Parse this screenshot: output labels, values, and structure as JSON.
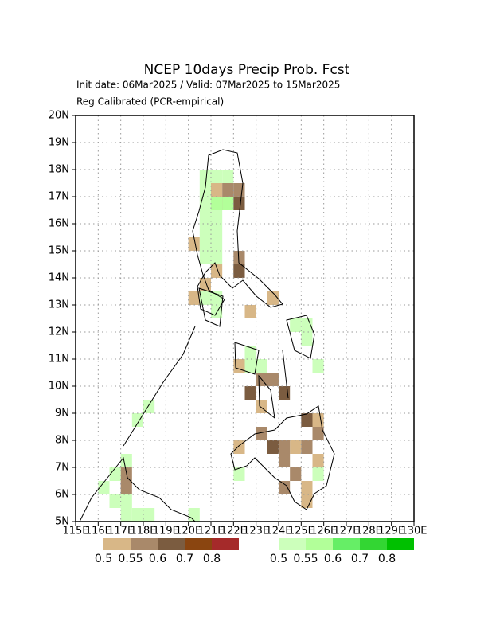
{
  "map": {
    "title": "NCEP 10days Precip Prob. Fcst",
    "subtitle": "Init date: 06Mar2025 / Valid: 07Mar2025 to 15Mar2025",
    "note": "Reg Calibrated (PCR-empirical)",
    "xlim": [
      115,
      130
    ],
    "ylim": [
      5,
      20
    ],
    "xticks": [
      {
        "value": 115,
        "label": "115E"
      },
      {
        "value": 116,
        "label": "116E"
      },
      {
        "value": 117,
        "label": "117E"
      },
      {
        "value": 118,
        "label": "118E"
      },
      {
        "value": 119,
        "label": "119E"
      },
      {
        "value": 120,
        "label": "120E"
      },
      {
        "value": 121,
        "label": "121E"
      },
      {
        "value": 122,
        "label": "122E"
      },
      {
        "value": 123,
        "label": "123E"
      },
      {
        "value": 124,
        "label": "124E"
      },
      {
        "value": 125,
        "label": "125E"
      },
      {
        "value": 126,
        "label": "126E"
      },
      {
        "value": 127,
        "label": "127E"
      },
      {
        "value": 128,
        "label": "128E"
      },
      {
        "value": 129,
        "label": "129E"
      },
      {
        "value": 130,
        "label": "130E"
      }
    ],
    "yticks": [
      {
        "value": 5,
        "label": "5N"
      },
      {
        "value": 6,
        "label": "6N"
      },
      {
        "value": 7,
        "label": "7N"
      },
      {
        "value": 8,
        "label": "8N"
      },
      {
        "value": 9,
        "label": "9N"
      },
      {
        "value": 10,
        "label": "10N"
      },
      {
        "value": 11,
        "label": "11N"
      },
      {
        "value": 12,
        "label": "12N"
      },
      {
        "value": 13,
        "label": "13N"
      },
      {
        "value": 14,
        "label": "14N"
      },
      {
        "value": 15,
        "label": "15N"
      },
      {
        "value": 16,
        "label": "16N"
      },
      {
        "value": 17,
        "label": "17N"
      },
      {
        "value": 18,
        "label": "18N"
      },
      {
        "value": 19,
        "label": "19N"
      },
      {
        "value": 20,
        "label": "20N"
      }
    ],
    "grid": true,
    "dry_legend": {
      "levels": [
        0.5,
        0.55,
        0.6,
        0.7,
        0.8
      ],
      "colors": [
        "#d8b787",
        "#a9896a",
        "#7b5c40",
        "#8a4510",
        "#a52a2a"
      ]
    },
    "wet_legend": {
      "levels": [
        0.5,
        0.55,
        0.6,
        0.7,
        0.8
      ],
      "colors": [
        "#ccffbb",
        "#b2ff99",
        "#66ee66",
        "#33d633",
        "#00c000"
      ]
    },
    "wet_cells": [
      [
        120.5,
        17.5,
        0.5
      ],
      [
        121,
        17.5,
        0.5
      ],
      [
        121.5,
        17.5,
        0.5
      ],
      [
        120.5,
        17,
        0.5
      ],
      [
        120.5,
        16.5,
        0.5
      ],
      [
        121,
        16,
        0.5
      ],
      [
        120.5,
        16,
        0.5
      ],
      [
        120.5,
        15.5,
        0.5
      ],
      [
        121,
        15.5,
        0.5
      ],
      [
        120.5,
        15,
        0.5
      ],
      [
        121,
        15,
        0.5
      ],
      [
        120.5,
        14.5,
        0.5
      ],
      [
        121,
        14.5,
        0.5
      ],
      [
        120.5,
        13,
        0.5
      ],
      [
        121,
        12.5,
        0.5
      ],
      [
        121,
        13,
        0.5
      ],
      [
        122.5,
        11,
        0.5
      ],
      [
        122.5,
        10.5,
        0.5
      ],
      [
        123,
        10.5,
        0.5
      ],
      [
        124.5,
        12,
        0.5
      ],
      [
        125,
        12,
        0.5
      ],
      [
        125,
        11.5,
        0.5
      ],
      [
        125.5,
        10.5,
        0.5
      ],
      [
        125.5,
        6.5,
        0.5
      ],
      [
        117,
        5,
        0.5
      ],
      [
        116.5,
        5.5,
        0.5
      ],
      [
        117,
        5.5,
        0.5
      ],
      [
        117.5,
        5,
        0.5
      ],
      [
        118,
        5,
        0.5
      ],
      [
        116,
        6,
        0.5
      ],
      [
        116.5,
        6.5,
        0.5
      ],
      [
        117.5,
        8.5,
        0.5
      ],
      [
        118,
        9,
        0.5
      ],
      [
        117,
        7,
        0.5
      ],
      [
        120,
        5,
        0.5
      ],
      [
        122,
        6.5,
        0.5
      ],
      [
        121,
        16.5,
        0.55
      ],
      [
        121.5,
        16.5,
        0.55
      ]
    ],
    "dry_cells": [
      [
        120,
        15,
        0.5
      ],
      [
        121,
        17,
        0.5
      ],
      [
        120,
        13,
        0.5
      ],
      [
        120.5,
        13.5,
        0.5
      ],
      [
        121,
        14,
        0.5
      ],
      [
        122,
        14,
        0.5
      ],
      [
        122.5,
        12.5,
        0.5
      ],
      [
        123.5,
        13,
        0.5
      ],
      [
        122,
        10.5,
        0.5
      ],
      [
        123,
        9,
        0.5
      ],
      [
        124.5,
        7.5,
        0.5
      ],
      [
        125.5,
        8.5,
        0.5
      ],
      [
        125.5,
        7,
        0.5
      ],
      [
        125,
        6,
        0.5
      ],
      [
        125,
        5.5,
        0.5
      ],
      [
        122,
        7.5,
        0.5
      ],
      [
        121.5,
        17,
        0.55
      ],
      [
        122,
        17,
        0.55
      ],
      [
        121.5,
        16.5,
        0.55
      ],
      [
        122,
        14.5,
        0.55
      ],
      [
        123,
        10,
        0.55
      ],
      [
        123.5,
        10,
        0.55
      ],
      [
        123,
        8,
        0.55
      ],
      [
        124,
        7.5,
        0.55
      ],
      [
        124,
        7,
        0.55
      ],
      [
        124.5,
        6.5,
        0.55
      ],
      [
        124,
        6,
        0.55
      ],
      [
        125,
        7.5,
        0.55
      ],
      [
        125.5,
        8,
        0.55
      ],
      [
        117,
        6,
        0.55
      ],
      [
        117,
        6.5,
        0.55
      ],
      [
        122,
        16.5,
        0.6
      ],
      [
        122,
        14,
        0.6
      ],
      [
        122.5,
        9.5,
        0.6
      ],
      [
        124,
        9.5,
        0.6
      ],
      [
        125,
        8.5,
        0.6
      ],
      [
        123.5,
        7.5,
        0.6
      ]
    ]
  }
}
